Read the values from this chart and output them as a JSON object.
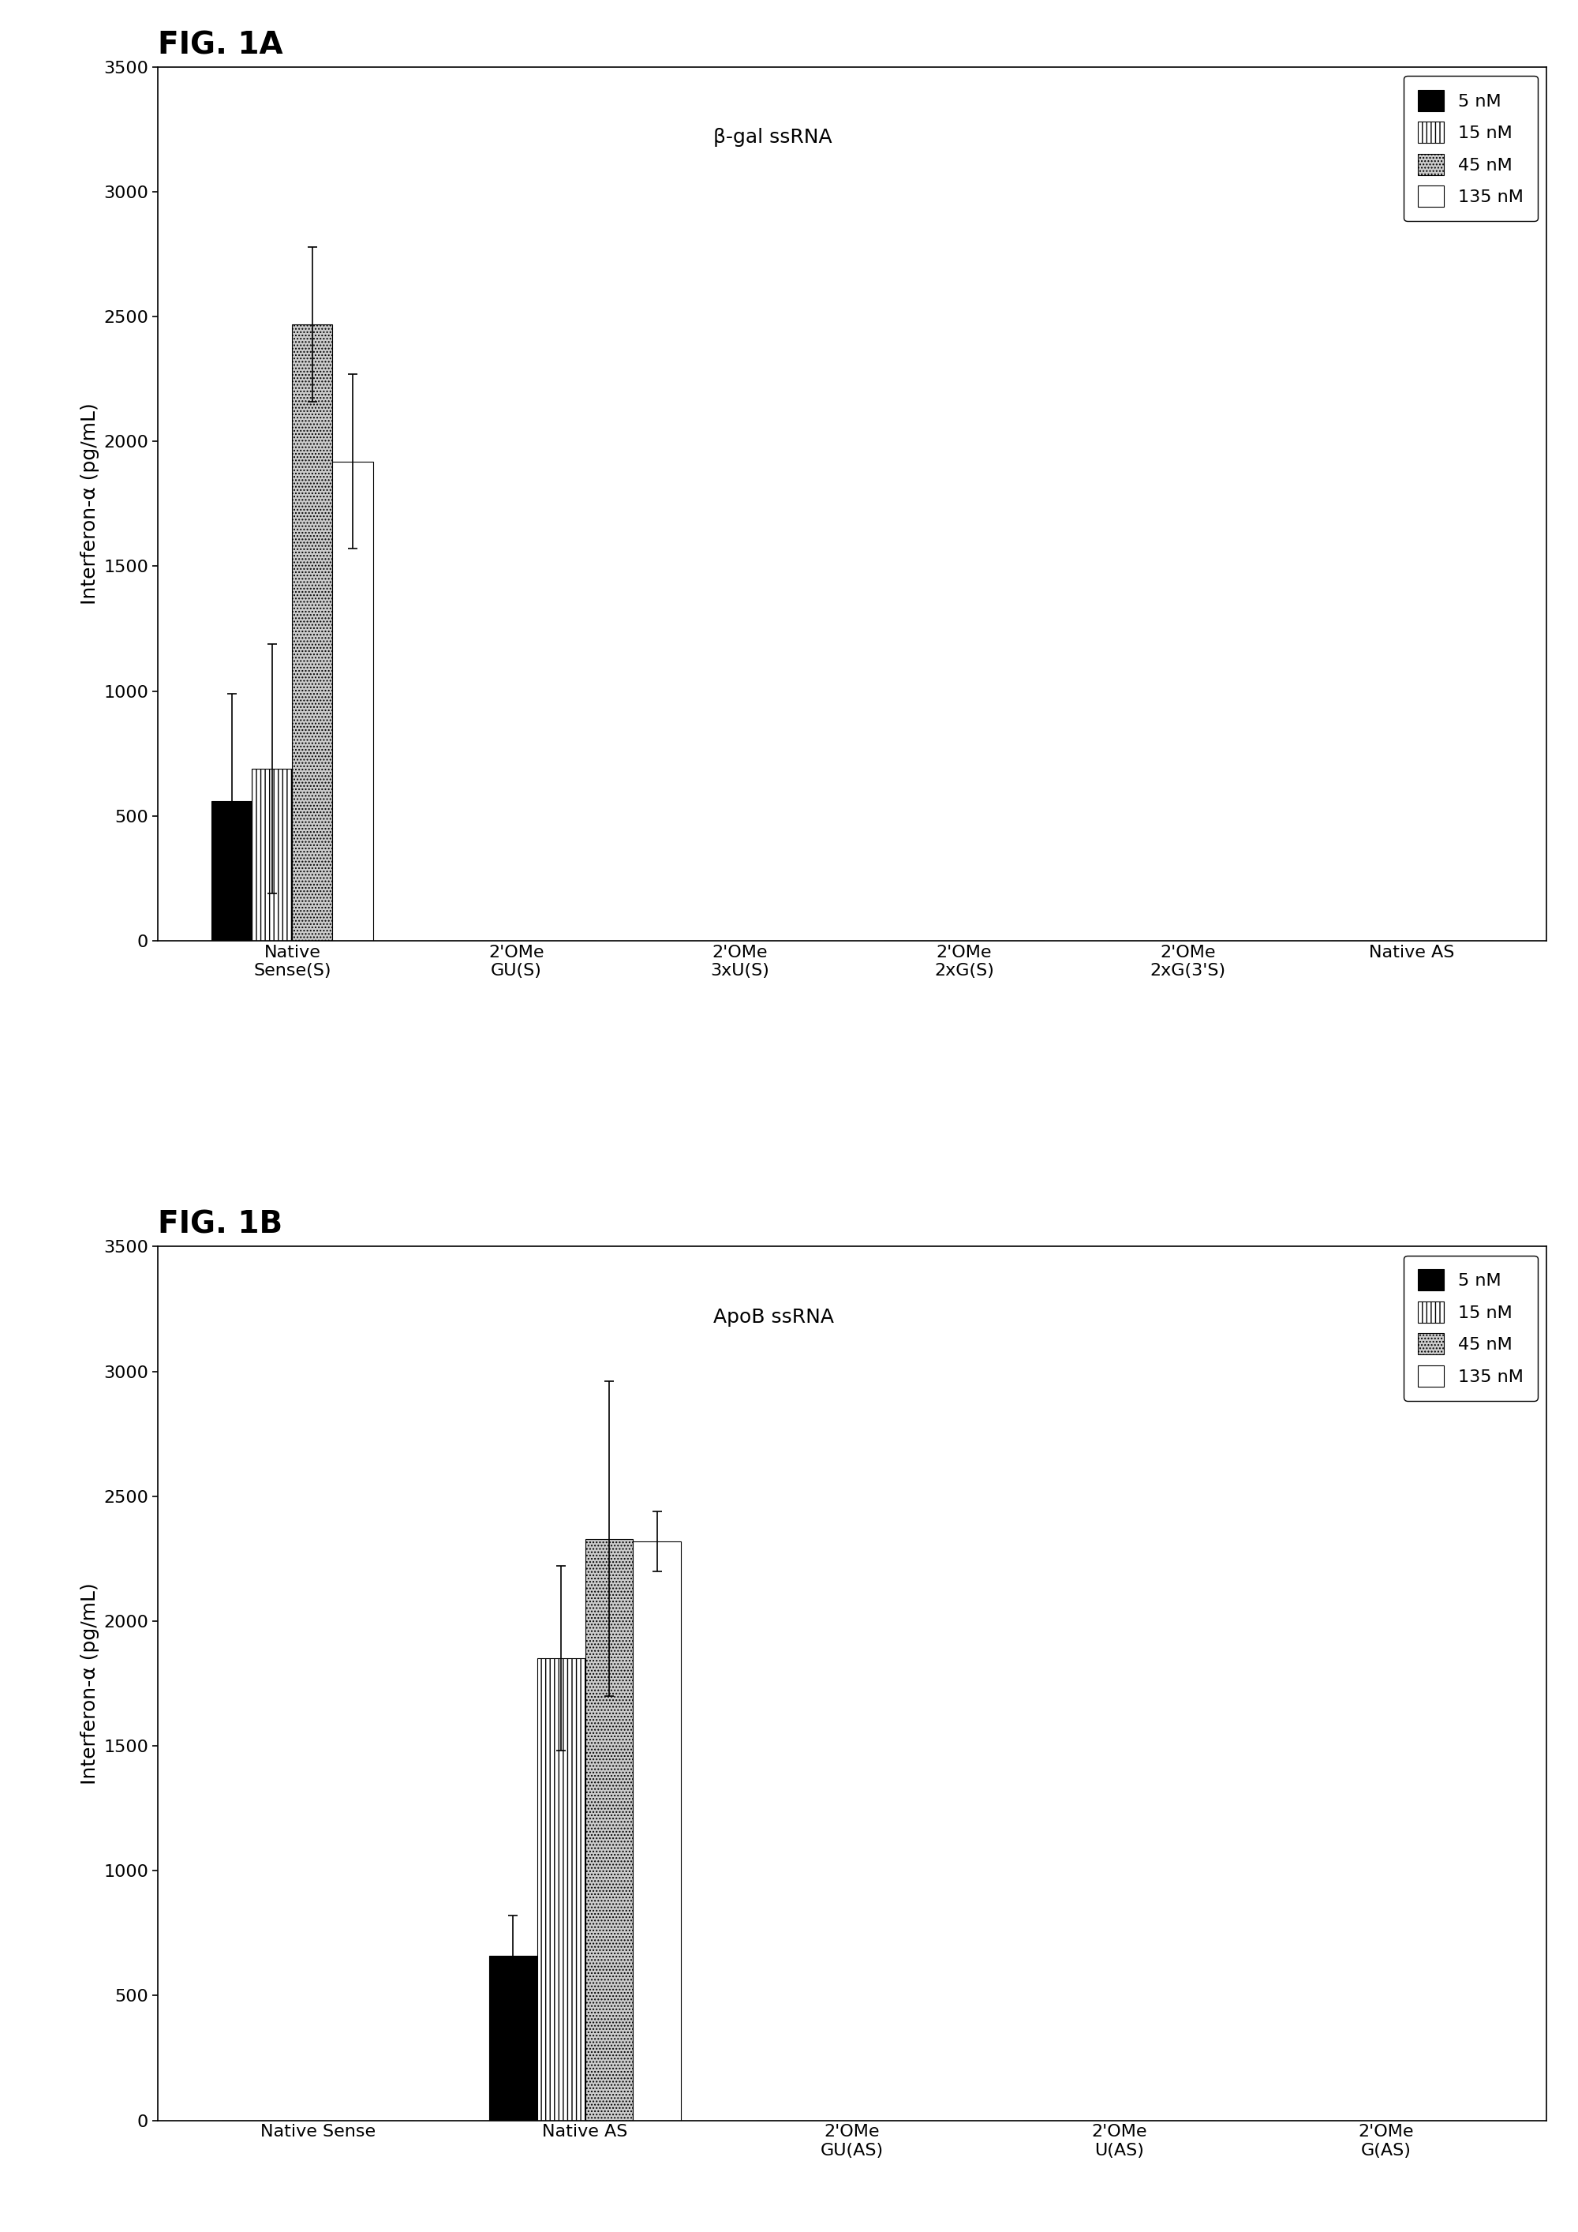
{
  "fig1a": {
    "title": "β-gal ssRNA",
    "fig_label": "FIG. 1A",
    "categories": [
      "Native\nSense(S)",
      "2'OMe\nGU(S)",
      "2'OMe\n3xU(S)",
      "2'OMe\n2xG(S)",
      "2'OMe\n2xG(3'S)",
      "Native AS"
    ],
    "values": {
      "5nM": [
        560,
        0,
        0,
        0,
        0,
        0
      ],
      "15nM": [
        690,
        0,
        0,
        0,
        0,
        0
      ],
      "45nM": [
        2470,
        0,
        0,
        0,
        0,
        0
      ],
      "135nM": [
        1920,
        0,
        0,
        0,
        0,
        0
      ]
    },
    "errors": {
      "5nM": [
        430,
        0,
        0,
        0,
        0,
        0
      ],
      "15nM": [
        500,
        0,
        0,
        0,
        0,
        0
      ],
      "45nM": [
        310,
        0,
        0,
        0,
        0,
        0
      ],
      "135nM": [
        350,
        0,
        0,
        0,
        0,
        0
      ]
    },
    "ylim": [
      0,
      3500
    ],
    "yticks": [
      0,
      500,
      1000,
      1500,
      2000,
      2500,
      3000,
      3500
    ],
    "ylabel": "Interferon-α (pg/mL)"
  },
  "fig1b": {
    "title": "ApoB ssRNA",
    "fig_label": "FIG. 1B",
    "categories": [
      "Native Sense",
      "Native AS",
      "2'OMe\nGU(AS)",
      "2'OMe\nU(AS)",
      "2'OMe\nG(AS)"
    ],
    "values": {
      "5nM": [
        0,
        660,
        0,
        0,
        0
      ],
      "15nM": [
        0,
        1850,
        0,
        0,
        0
      ],
      "45nM": [
        0,
        2330,
        0,
        0,
        0
      ],
      "135nM": [
        0,
        2320,
        0,
        0,
        0
      ]
    },
    "errors": {
      "5nM": [
        0,
        160,
        0,
        0,
        0
      ],
      "15nM": [
        0,
        370,
        0,
        0,
        0
      ],
      "45nM": [
        0,
        630,
        0,
        0,
        0
      ],
      "135nM": [
        0,
        120,
        0,
        0,
        0
      ]
    },
    "ylim": [
      0,
      3500
    ],
    "yticks": [
      0,
      500,
      1000,
      1500,
      2000,
      2500,
      3000,
      3500
    ],
    "ylabel": "Interferon-α (pg/mL)"
  },
  "colors": {
    "5nM": "#000000",
    "15nM": "#ffffff",
    "45nM": "#cccccc",
    "135nM": "#ffffff"
  },
  "hatches": {
    "5nM": null,
    "15nM": "|||",
    "45nM": "....",
    "135nM": null
  },
  "legend_labels": [
    "5 nM",
    "15 nM",
    "45 nM",
    "135 nM"
  ],
  "legend_keys": [
    "5nM",
    "15nM",
    "45nM",
    "135nM"
  ],
  "bar_width": 0.18,
  "edge_color": "#000000"
}
